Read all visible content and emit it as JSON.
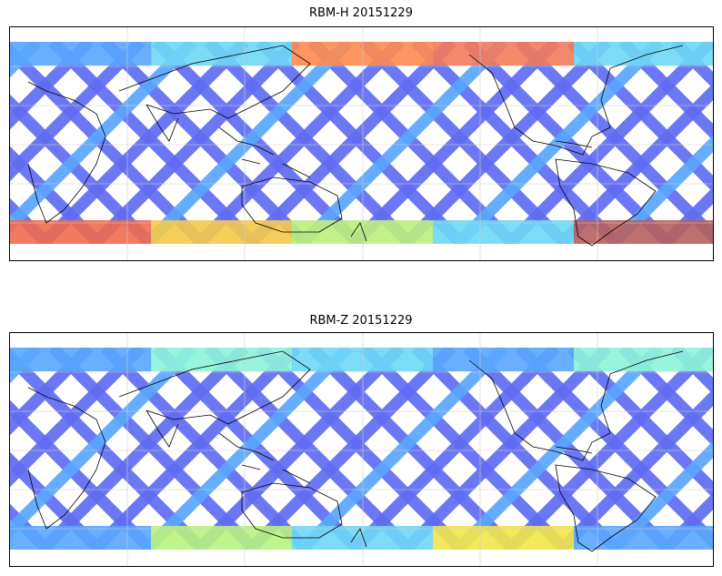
{
  "panels": [
    {
      "title": "RBM-H 20151229",
      "palette": {
        "primary": "#5f6cf2",
        "secondary": "#5aa6ff",
        "north_band": [
          "#5aa6ff",
          "#6ed7f5",
          "#ff8a50",
          "#f47a5a",
          "#6ed7f5"
        ],
        "south_band": [
          "#ef6b4f",
          "#f5c94a",
          "#bdf07c",
          "#6ed7f5",
          "#b76060"
        ]
      }
    },
    {
      "title": "RBM-Z 20151229",
      "palette": {
        "primary": "#5f6cf2",
        "secondary": "#5aa6ff",
        "north_band": [
          "#5aa6ff",
          "#8ff2d8",
          "#6ed7f5",
          "#5aa6ff",
          "#8ff2d8"
        ],
        "south_band": [
          "#5aa6ff",
          "#b8f280",
          "#6ed7f5",
          "#f2e64a",
          "#5aa6ff"
        ]
      }
    }
  ]
}
